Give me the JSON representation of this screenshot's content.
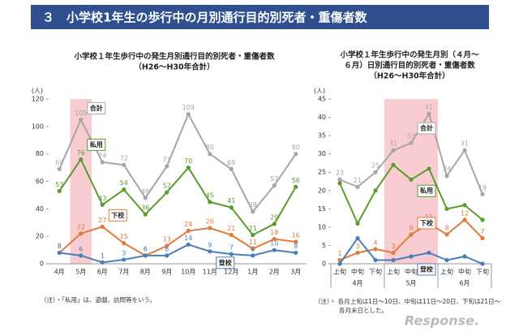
{
  "header": {
    "title": "３　小学校1年生の歩行中の月別通行目的別死者・重傷者数"
  },
  "watermark": "Response.",
  "chart_data": [
    {
      "type": "line",
      "title": "小学校１年生歩行中の発生月別通行目的別死者・重傷者数",
      "subtitle": "（H26～H30年合計）",
      "y_label": "(人)",
      "categories": [
        "4月",
        "5月",
        "6月",
        "7月",
        "8月",
        "9月",
        "10月",
        "11月",
        "12月",
        "1月",
        "2月",
        "3月"
      ],
      "highlight": "5月",
      "ylim": [
        0,
        120
      ],
      "yticks": [
        0,
        20,
        40,
        60,
        80,
        100,
        120
      ],
      "series": [
        {
          "name": "合計",
          "color": "#a6a6a6",
          "show_labels": true,
          "values": [
            69,
            105,
            74,
            72,
            48,
            71,
            109,
            80,
            69,
            38,
            57,
            80
          ]
        },
        {
          "name": "私用",
          "color": "#5b9b2f",
          "show_labels": true,
          "values": [
            53,
            76,
            43,
            54,
            36,
            52,
            70,
            45,
            41,
            21,
            29,
            56
          ]
        },
        {
          "name": "下校",
          "color": "#e07b39",
          "show_labels": true,
          "values": [
            8,
            22,
            27,
            15,
            6,
            13,
            24,
            26,
            21,
            11,
            18,
            16
          ]
        },
        {
          "name": "登校",
          "color": "#4a7ebb",
          "show_labels": true,
          "values": [
            8,
            6,
            1,
            3,
            6,
            6,
            14,
            9,
            7,
            6,
            10,
            8
          ]
        }
      ],
      "note": "（注）・「私用」は、遊戯、訪問等をいう。"
    },
    {
      "type": "line",
      "title": [
        "小学校１年生歩行中の発生月別（４月～",
        "６月）日別通行目的別死者・重傷者数"
      ],
      "subtitle": "（H26～H30年合計）",
      "y_label": "(人)",
      "categories": [
        "上旬",
        "中旬",
        "下旬",
        "上旬",
        "中旬",
        "下旬",
        "上旬",
        "中旬",
        "下旬"
      ],
      "groups": [
        "4月",
        "5月",
        "6月"
      ],
      "highlight": "5月",
      "ylim": [
        0,
        45
      ],
      "yticks": [
        0,
        5,
        10,
        15,
        20,
        25,
        30,
        35,
        40,
        45
      ],
      "series": [
        {
          "name": "合計",
          "color": "#a6a6a6",
          "show_labels": true,
          "values": [
            23,
            21,
            25,
            31,
            33,
            41,
            24,
            31,
            19
          ]
        },
        {
          "name": "私用",
          "color": "#5b9b2f",
          "show_labels": false,
          "values": [
            22,
            11,
            20,
            27,
            23,
            26,
            15,
            16,
            12
          ]
        },
        {
          "name": "下校",
          "color": "#e07b39",
          "show_labels": true,
          "values": [
            1,
            3,
            4,
            3,
            8,
            11,
            8,
            12,
            7
          ]
        },
        {
          "name": "登校",
          "color": "#4a7ebb",
          "show_labels": false,
          "values": [
            0,
            7,
            1,
            1,
            2,
            3,
            1,
            2,
            0
          ]
        }
      ],
      "note": [
        "（注）・ 各月上旬は1日～10日、中旬は11日～20日、下旬は21日～",
        "各月末日とした。"
      ]
    }
  ]
}
